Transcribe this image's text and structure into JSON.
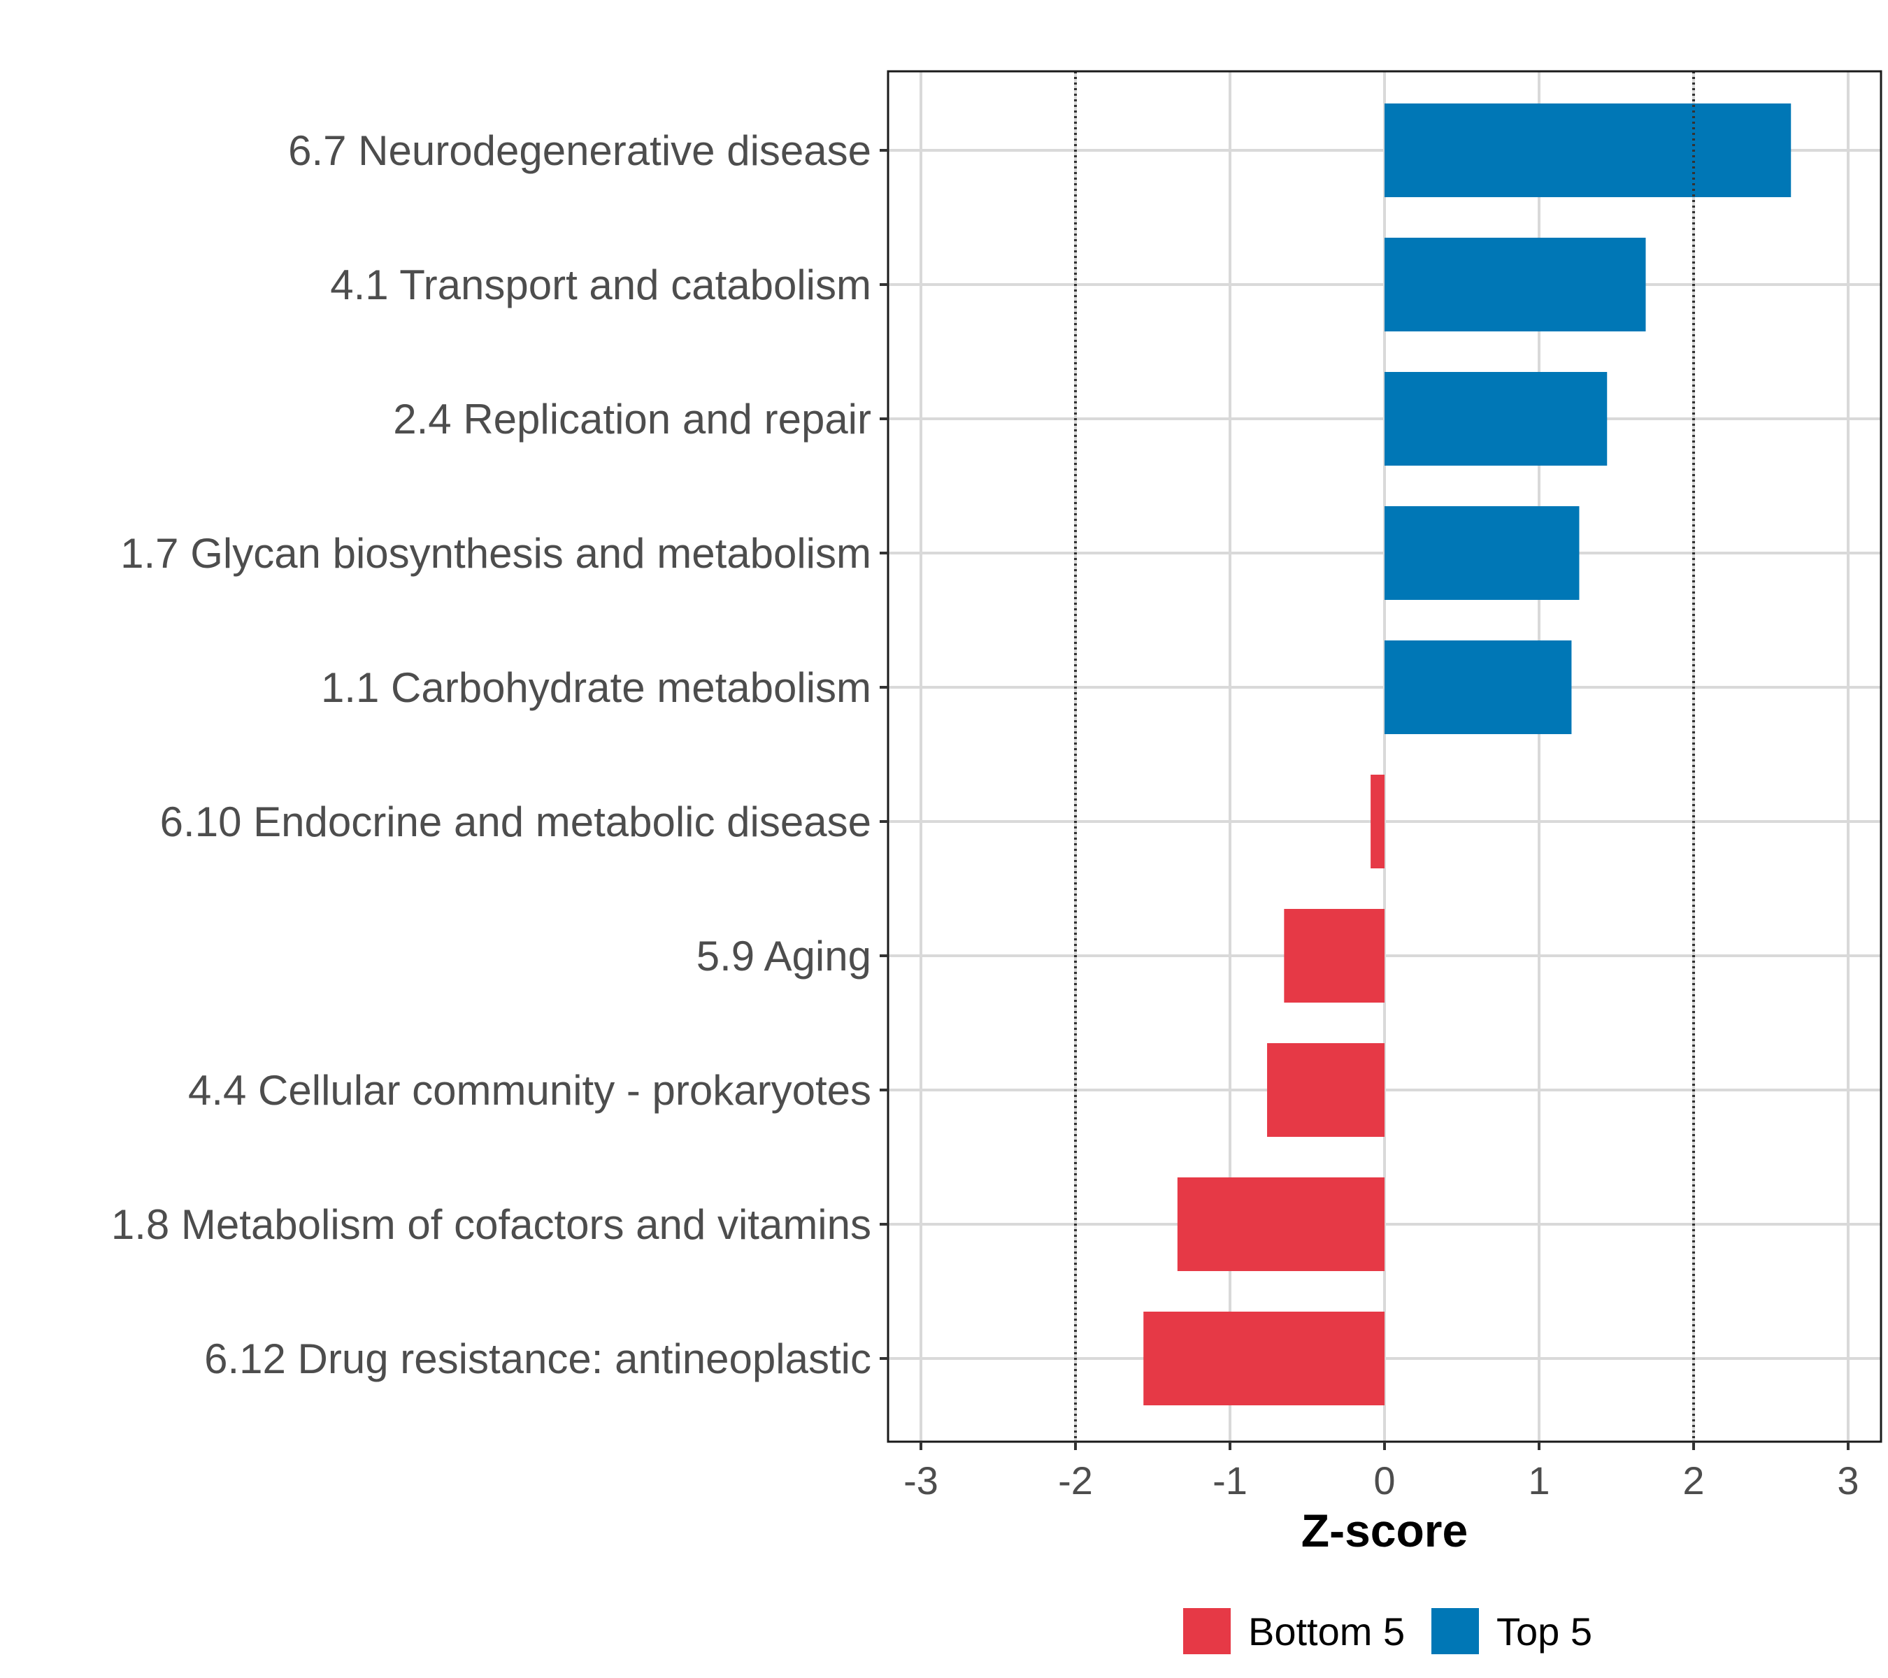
{
  "chart_data": {
    "type": "bar",
    "orientation": "horizontal",
    "categories": [
      "6.7 Neurodegenerative disease",
      "4.1 Transport and catabolism",
      "2.4 Replication and repair",
      "1.7 Glycan biosynthesis and metabolism",
      "1.1 Carbohydrate metabolism",
      "6.10 Endocrine and metabolic disease",
      "5.9 Aging",
      "4.4 Cellular community - prokaryotes",
      "1.8 Metabolism of cofactors and vitamins",
      "6.12 Drug resistance: antineoplastic"
    ],
    "values": [
      2.63,
      1.69,
      1.44,
      1.26,
      1.21,
      -0.09,
      -0.65,
      -0.76,
      -1.34,
      -1.56
    ],
    "groups": [
      "Top 5",
      "Top 5",
      "Top 5",
      "Top 5",
      "Top 5",
      "Bottom 5",
      "Bottom 5",
      "Bottom 5",
      "Bottom 5",
      "Bottom 5"
    ],
    "xlabel": "Z-score",
    "ylabel": "",
    "xlim": [
      -3.2,
      3.2
    ],
    "xticks": [
      -3,
      -2,
      -1,
      0,
      1,
      2,
      3
    ],
    "xtick_labels": [
      "-3",
      "-2",
      "-1",
      "0",
      "1",
      "2",
      "3"
    ],
    "reference_lines": [
      -2,
      2
    ],
    "grid": true,
    "legend": {
      "position": "bottom",
      "entries": [
        {
          "label": "Bottom 5",
          "color": "#e63946"
        },
        {
          "label": "Top 5",
          "color": "#0077b6"
        }
      ]
    },
    "colors": {
      "Top 5": "#0077b6",
      "Bottom 5": "#e63946"
    }
  }
}
